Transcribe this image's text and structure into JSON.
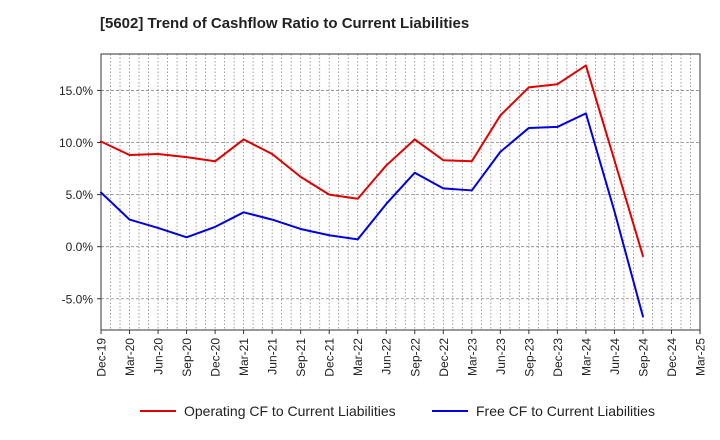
{
  "chart_data": {
    "type": "line",
    "title": "[5602]  Trend of Cashflow Ratio to Current Liabilities",
    "xlabel": "",
    "ylabel": "",
    "categories": [
      "Dec-19",
      "Mar-20",
      "Jun-20",
      "Sep-20",
      "Dec-20",
      "Mar-21",
      "Jun-21",
      "Sep-21",
      "Dec-21",
      "Mar-22",
      "Jun-22",
      "Sep-22",
      "Dec-22",
      "Mar-23",
      "Jun-23",
      "Sep-23",
      "Dec-23",
      "Mar-24",
      "Jun-24",
      "Sep-24",
      "Dec-24",
      "Mar-25"
    ],
    "y_tick_values": [
      -5,
      0,
      5,
      10,
      15
    ],
    "y_tick_labels": [
      "-5.0%",
      "0.0%",
      "5.0%",
      "10.0%",
      "15.0%"
    ],
    "ylim": [
      -8,
      18.5
    ],
    "grid": true,
    "legend_position": "bottom",
    "series": [
      {
        "name": "Operating CF to Current Liabilities",
        "color": "#e00000",
        "values": [
          10.1,
          8.8,
          8.9,
          8.6,
          8.2,
          10.3,
          8.9,
          6.7,
          5.0,
          4.6,
          7.8,
          10.3,
          8.3,
          8.2,
          12.6,
          15.3,
          15.6,
          17.4,
          8.3,
          -0.9,
          null,
          null
        ]
      },
      {
        "name": "Free CF to Current Liabilities",
        "color": "#0000e0",
        "values": [
          5.2,
          2.6,
          1.8,
          0.9,
          1.9,
          3.3,
          2.6,
          1.7,
          1.1,
          0.7,
          4.1,
          7.1,
          5.6,
          5.4,
          9.1,
          11.4,
          11.5,
          12.8,
          3.4,
          -6.7,
          null,
          null
        ]
      }
    ]
  }
}
